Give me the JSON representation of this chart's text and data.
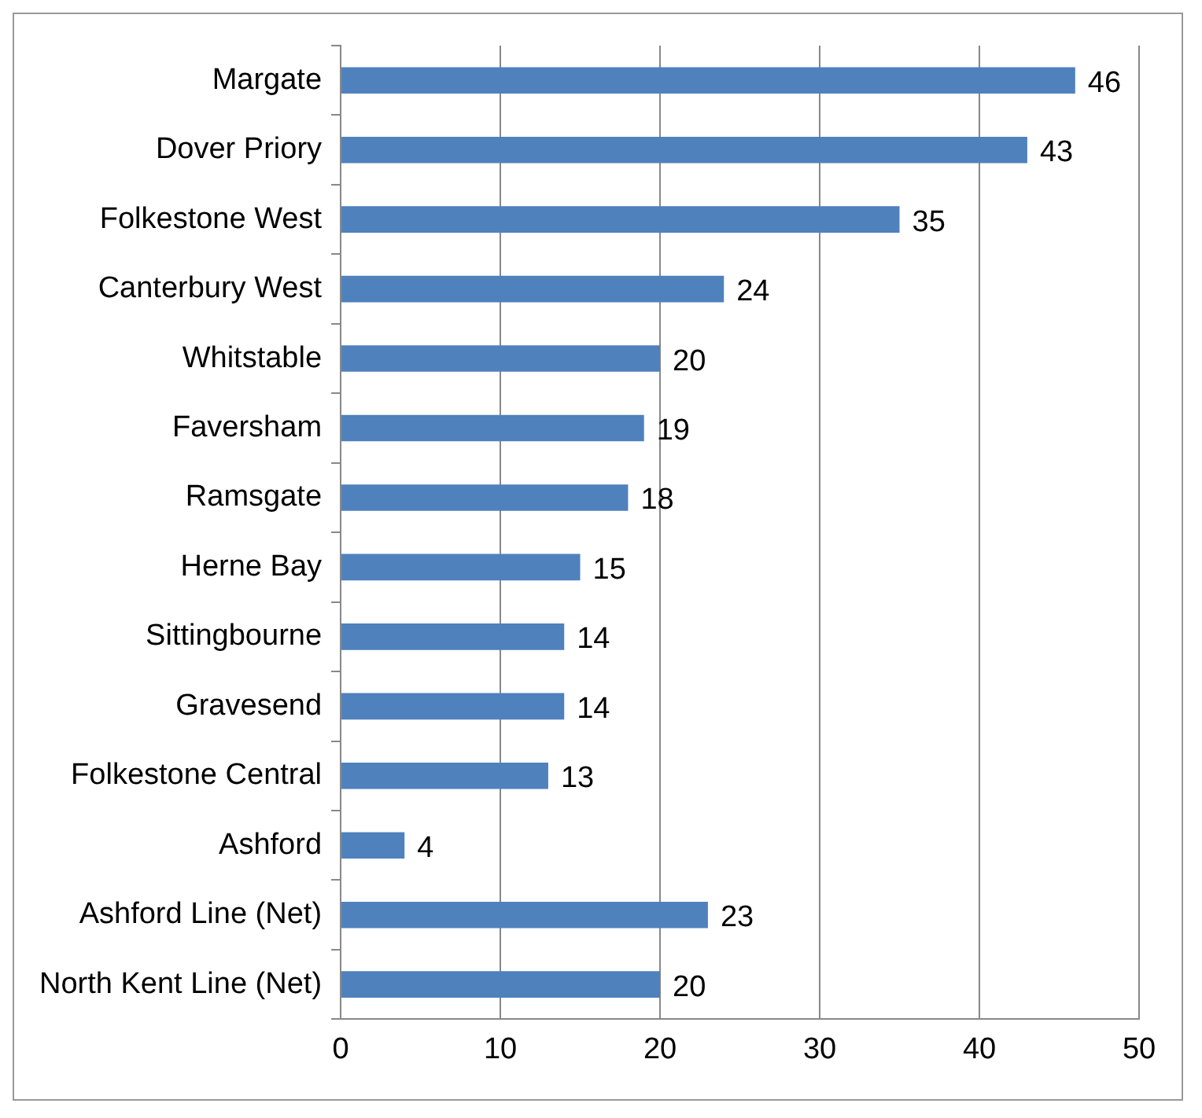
{
  "chart_data": {
    "type": "bar",
    "orientation": "horizontal",
    "categories": [
      "Margate",
      "Dover Priory",
      "Folkestone West",
      "Canterbury West",
      "Whitstable",
      "Faversham",
      "Ramsgate",
      "Herne Bay",
      "Sittingbourne",
      "Gravesend",
      "Folkestone Central",
      "Ashford",
      "Ashford Line (Net)",
      "North Kent Line (Net)"
    ],
    "values": [
      46,
      43,
      35,
      24,
      20,
      19,
      18,
      15,
      14,
      14,
      13,
      4,
      23,
      20
    ],
    "color": "#4f81bd",
    "xlim": [
      0,
      50
    ],
    "xticks": [
      0,
      10,
      20,
      30,
      40,
      50
    ],
    "grid": "x",
    "data_labels": true
  }
}
